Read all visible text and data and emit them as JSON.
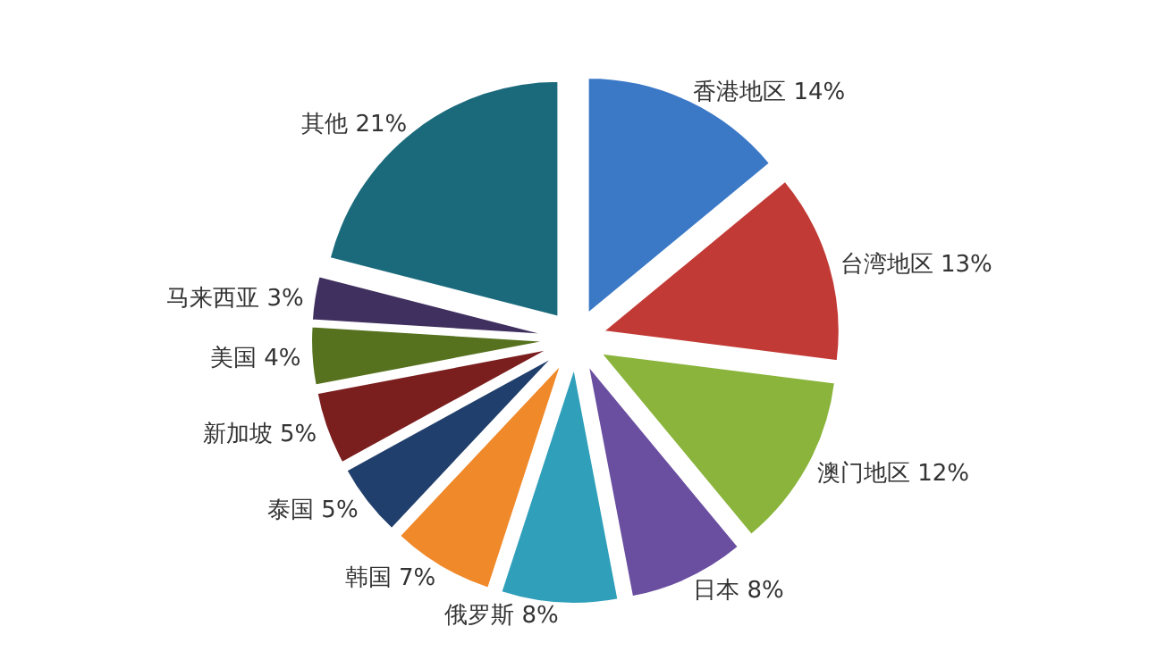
{
  "chart_data": {
    "type": "pie",
    "categories": [
      "香港地区",
      "台湾地区",
      "澳门地区",
      "日本",
      "俄罗斯",
      "韩国",
      "泰国",
      "新加坡",
      "美国",
      "马来西亚",
      "其他"
    ],
    "values": [
      14,
      13,
      12,
      8,
      8,
      7,
      5,
      5,
      4,
      3,
      21
    ],
    "value_labels": [
      "14%",
      "13%",
      "12%",
      "8%",
      "8%",
      "7%",
      "5%",
      "5%",
      "4%",
      "3%",
      "21%"
    ],
    "colors": [
      "#3b78c6",
      "#c23a35",
      "#8ab43c",
      "#6a4ea0",
      "#2f9fba",
      "#f0892a",
      "#213f6c",
      "#7b1e1e",
      "#56721f",
      "#40305f",
      "#1b6a7c"
    ]
  }
}
